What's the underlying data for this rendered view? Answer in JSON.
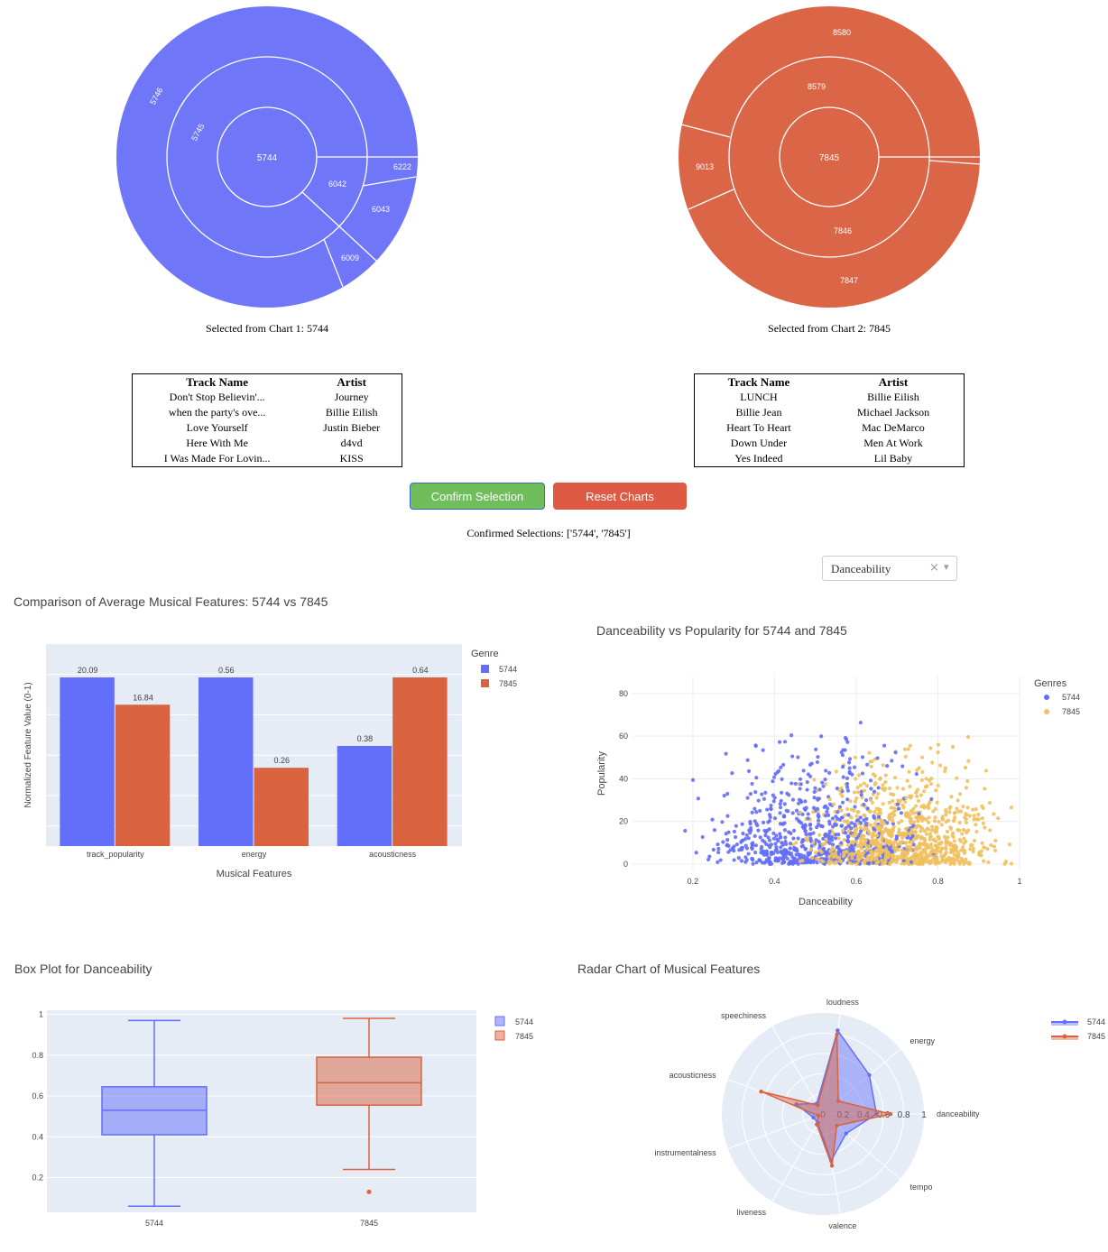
{
  "sunburst1": {
    "color": "#6f76f7",
    "labels": {
      "root": "5744",
      "ring2a": "5745",
      "ring3a": "5746",
      "ring2b": "6042",
      "ring3b": "6043",
      "ring3c": "6009",
      "ring3d": "6222"
    },
    "caption": "Selected from Chart 1: 5744"
  },
  "sunburst2": {
    "color": "#db6547",
    "labels": {
      "root": "7845",
      "ring2a": "8579",
      "ring3a": "8580",
      "ring2b": "7846",
      "ring3b": "7847",
      "ring3c": "9013"
    },
    "caption": "Selected from Chart 2: 7845"
  },
  "table1": {
    "headers": [
      "Track Name",
      "Artist"
    ],
    "rows": [
      [
        "Don't Stop Believin'...",
        "Journey"
      ],
      [
        "when the party's ove...",
        "Billie Eilish"
      ],
      [
        "Love Yourself",
        "Justin Bieber"
      ],
      [
        "Here With Me",
        "d4vd"
      ],
      [
        "I Was Made For Lovin...",
        "KISS"
      ]
    ]
  },
  "table2": {
    "headers": [
      "Track Name",
      "Artist"
    ],
    "rows": [
      [
        "LUNCH",
        "Billie Eilish"
      ],
      [
        "Billie Jean",
        "Michael Jackson"
      ],
      [
        "Heart To Heart",
        "Mac DeMarco"
      ],
      [
        "Down Under",
        "Men At Work"
      ],
      [
        "Yes Indeed",
        "Lil Baby"
      ]
    ]
  },
  "buttons": {
    "confirm": "Confirm Selection",
    "reset": "Reset Charts",
    "confirm_color": "#6fbd5b",
    "reset_color": "#de5a42"
  },
  "confirmed_text": "Confirmed Selections: ['5744', '7845']",
  "dropdown": {
    "value": "Danceability",
    "clear": "×",
    "arrow": "▾"
  },
  "colors": {
    "a": "#636efa",
    "b": "#d9633f",
    "scatter_b": "#f0c15e",
    "plot_bg": "#e5ecf6"
  },
  "chart_data": [
    {
      "type": "bar",
      "title": "Comparison of Average Musical Features: 5744 vs 7845",
      "xlabel": "Musical Features",
      "ylabel": "Normalized Feature Value (0-1)",
      "legend_title": "Genre",
      "categories": [
        "track_popularity",
        "energy",
        "acousticness"
      ],
      "series": [
        {
          "name": "5744",
          "values": [
            20.09,
            0.56,
            0.38
          ],
          "labels": [
            "20.09",
            "0.56",
            "0.38"
          ]
        },
        {
          "name": "7845",
          "values": [
            16.84,
            0.26,
            0.64
          ],
          "labels": [
            "16.84",
            "0.26",
            "0.64"
          ]
        }
      ]
    },
    {
      "type": "scatter",
      "title": "Danceability vs Popularity for 5744 and 7845",
      "xlabel": "Danceability",
      "ylabel": "Popularity",
      "legend_title": "Genres",
      "xticks": [
        "0.2",
        "0.4",
        "0.6",
        "0.8",
        "1"
      ],
      "yticks": [
        "0",
        "20",
        "40",
        "60",
        "80"
      ],
      "xlim": [
        0.05,
        1.0
      ],
      "ylim": [
        -3,
        88
      ],
      "series": [
        {
          "name": "5744",
          "x_center": 0.5,
          "x_spread": 0.17,
          "y_mean": 18
        },
        {
          "name": "7845",
          "x_center": 0.7,
          "x_spread": 0.15,
          "y_mean": 14
        }
      ]
    },
    {
      "type": "box",
      "title": "Box Plot for Danceability",
      "yticks": [
        "0.2",
        "0.4",
        "0.6",
        "0.8",
        "1"
      ],
      "ylim": [
        0.03,
        1.02
      ],
      "series": [
        {
          "name": "5744",
          "min": 0.06,
          "q1": 0.41,
          "median": 0.53,
          "q3": 0.645,
          "max": 0.97,
          "outliers": []
        },
        {
          "name": "7845",
          "min": 0.24,
          "q1": 0.555,
          "median": 0.665,
          "q3": 0.79,
          "max": 0.98,
          "outliers": [
            0.13
          ]
        }
      ]
    },
    {
      "type": "radar",
      "title": "Radar Chart of Musical Features",
      "axes": [
        "danceability",
        "energy",
        "loudness",
        "speechiness",
        "acousticness",
        "instrumentalness",
        "liveness",
        "valence",
        "tempo"
      ],
      "radial_ticks": [
        "0",
        "0.2",
        "0.4",
        "0.6",
        "0.8",
        "1"
      ],
      "series": [
        {
          "name": "5744",
          "values": [
            0.53,
            0.6,
            0.84,
            0.12,
            0.28,
            0.1,
            0.1,
            0.47,
            0.3
          ]
        },
        {
          "name": "7845",
          "values": [
            0.67,
            0.2,
            0.8,
            0.1,
            0.65,
            0.05,
            0.12,
            0.52,
            0.18
          ]
        }
      ]
    }
  ]
}
